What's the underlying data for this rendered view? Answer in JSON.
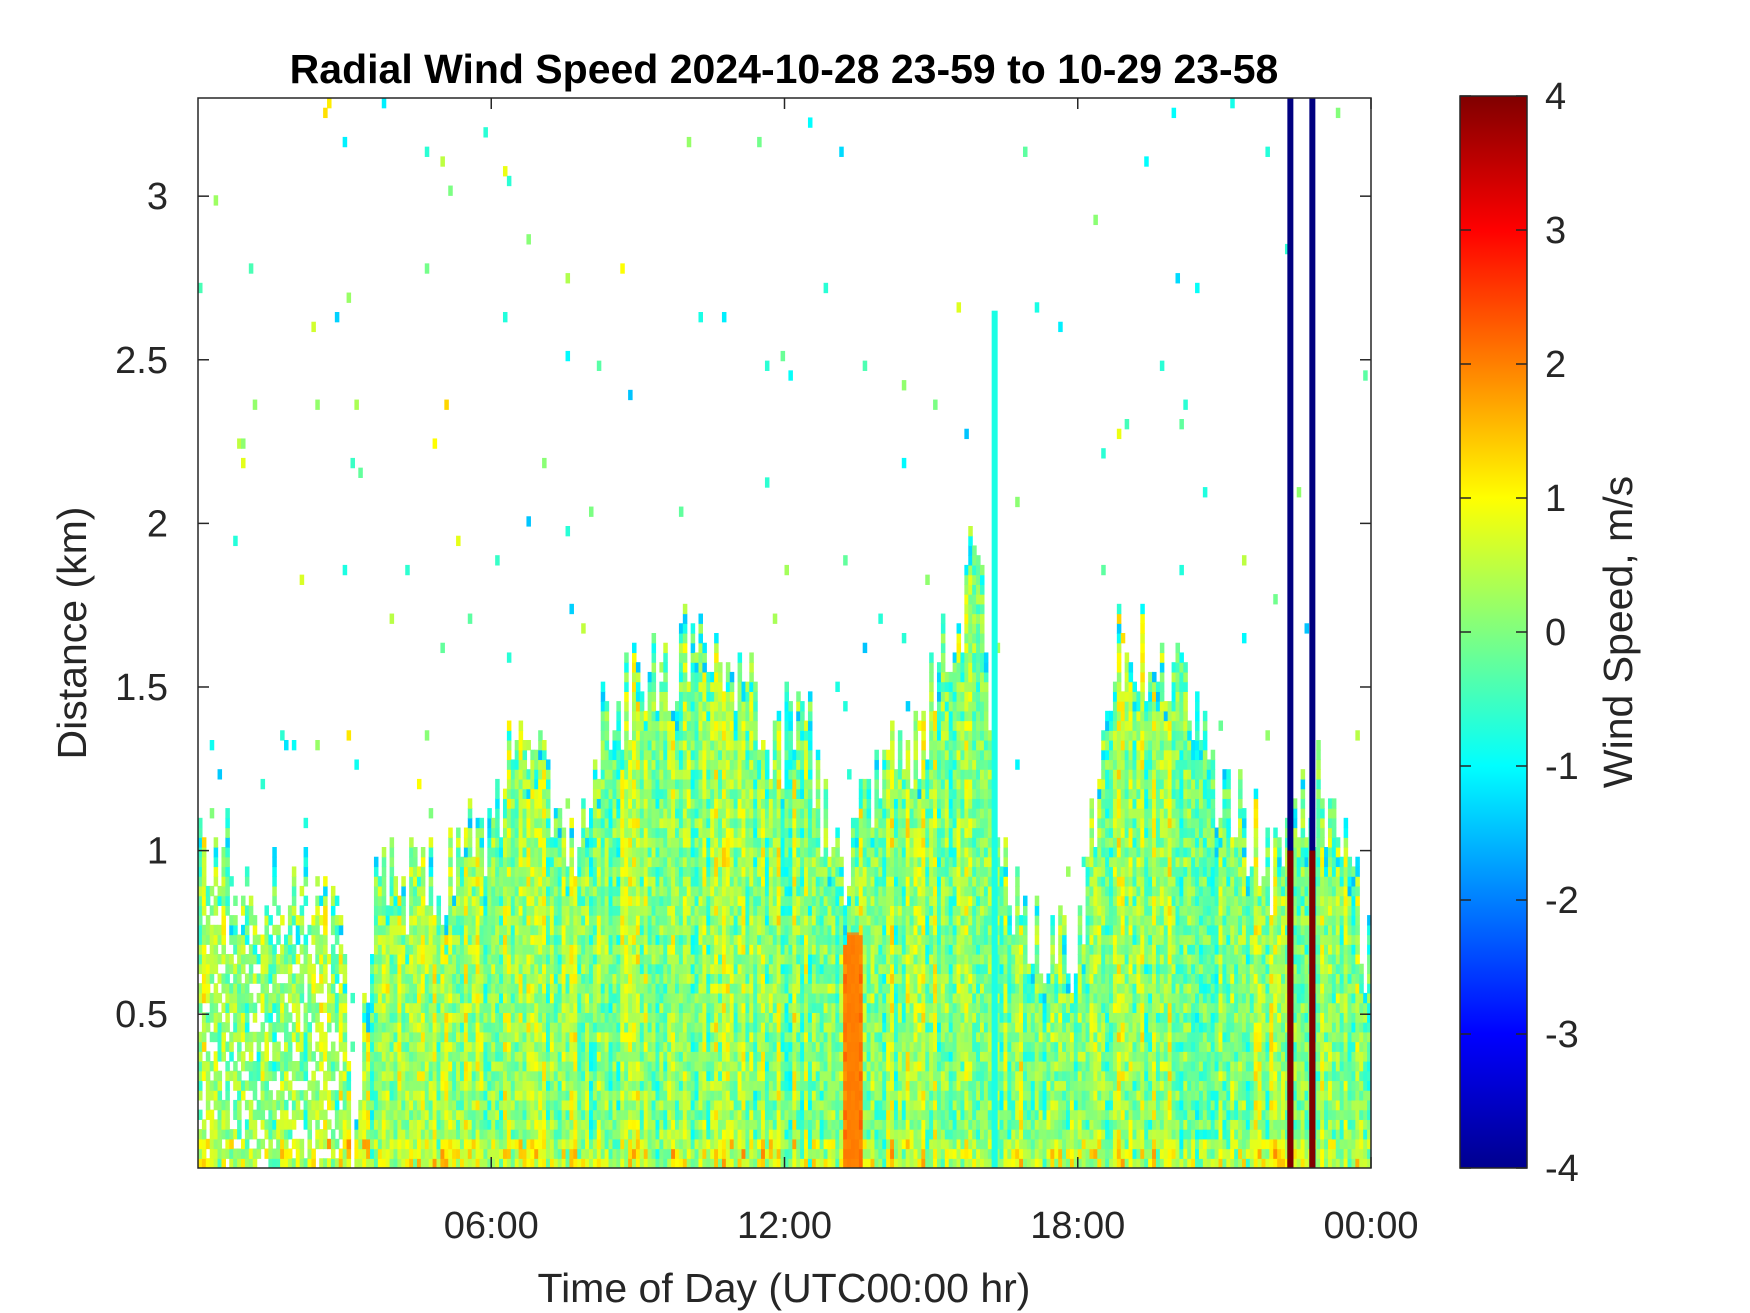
{
  "chart_data": {
    "type": "heatmap",
    "title": "Radial Wind Speed 2024-10-28 23-59 to 10-29 23-58",
    "xlabel": "Time of Day (UTC00:00 hr)",
    "ylabel": "Distance (km)",
    "xlim": [
      0,
      24
    ],
    "ylim": [
      0.03,
      3.3
    ],
    "x_ticks": [
      {
        "value": 6,
        "label": "06:00"
      },
      {
        "value": 12,
        "label": "12:00"
      },
      {
        "value": 18,
        "label": "18:00"
      },
      {
        "value": 24,
        "label": "00:00"
      }
    ],
    "y_ticks": [
      {
        "value": 0.5,
        "label": "0.5"
      },
      {
        "value": 1,
        "label": "1"
      },
      {
        "value": 1.5,
        "label": "1.5"
      },
      {
        "value": 2,
        "label": "2"
      },
      {
        "value": 2.5,
        "label": "2.5"
      },
      {
        "value": 3,
        "label": "3"
      }
    ],
    "colorbar": {
      "label": "Wind Speed, m/s",
      "range": [
        -4,
        4
      ],
      "ticks": [
        {
          "value": 4,
          "label": "4"
        },
        {
          "value": 3,
          "label": "3"
        },
        {
          "value": 2,
          "label": "2"
        },
        {
          "value": 1,
          "label": "1"
        },
        {
          "value": 0,
          "label": "0"
        },
        {
          "value": -1,
          "label": "-1"
        },
        {
          "value": -2,
          "label": "-2"
        },
        {
          "value": -3,
          "label": "-3"
        },
        {
          "value": -4,
          "label": "-4"
        }
      ],
      "colormap": "jet"
    },
    "echo_top_km": [
      [
        0.0,
        1.05
      ],
      [
        0.8,
        0.95
      ],
      [
        1.5,
        0.85
      ],
      [
        2.5,
        0.85
      ],
      [
        3.0,
        0.8
      ],
      [
        3.2,
        0.05
      ],
      [
        3.6,
        0.9
      ],
      [
        4.0,
        0.9
      ],
      [
        5.0,
        0.9
      ],
      [
        6.0,
        1.1
      ],
      [
        6.5,
        1.3
      ],
      [
        7.0,
        1.45
      ],
      [
        7.5,
        0.9
      ],
      [
        8.0,
        1.25
      ],
      [
        8.5,
        1.45
      ],
      [
        9.5,
        1.55
      ],
      [
        10.5,
        1.65
      ],
      [
        11.0,
        1.55
      ],
      [
        11.5,
        1.4
      ],
      [
        12.0,
        1.35
      ],
      [
        12.5,
        1.4
      ],
      [
        13.0,
        0.9
      ],
      [
        13.5,
        1.05
      ],
      [
        14.0,
        1.35
      ],
      [
        14.5,
        1.2
      ],
      [
        15.0,
        1.5
      ],
      [
        15.5,
        1.75
      ],
      [
        16.0,
        1.85
      ],
      [
        16.3,
        1.2
      ],
      [
        16.7,
        0.85
      ],
      [
        17.5,
        0.7
      ],
      [
        18.0,
        0.6
      ],
      [
        18.5,
        1.3
      ],
      [
        19.0,
        1.7
      ],
      [
        19.5,
        1.55
      ],
      [
        20.0,
        1.5
      ],
      [
        20.5,
        1.3
      ],
      [
        21.0,
        1.2
      ],
      [
        21.5,
        1.05
      ],
      [
        22.0,
        0.95
      ],
      [
        22.5,
        1.1
      ],
      [
        23.0,
        1.2
      ],
      [
        23.5,
        1.0
      ],
      [
        24.0,
        0.6
      ]
    ],
    "notable_features": [
      {
        "x": 22.35,
        "value": -4,
        "desc": "full-height column of strong negative speed (dark blue), dark red near ground"
      },
      {
        "x": 22.8,
        "value": -4,
        "desc": "full-height column of strong negative speed (dark blue), dark red near ground"
      },
      {
        "x": 16.3,
        "y_top": 2.65,
        "value": -0.8,
        "desc": "narrow cyan plume"
      },
      {
        "x": 13.4,
        "y_range": [
          0.03,
          0.75
        ],
        "value": 2,
        "desc": "orange patch"
      }
    ]
  }
}
